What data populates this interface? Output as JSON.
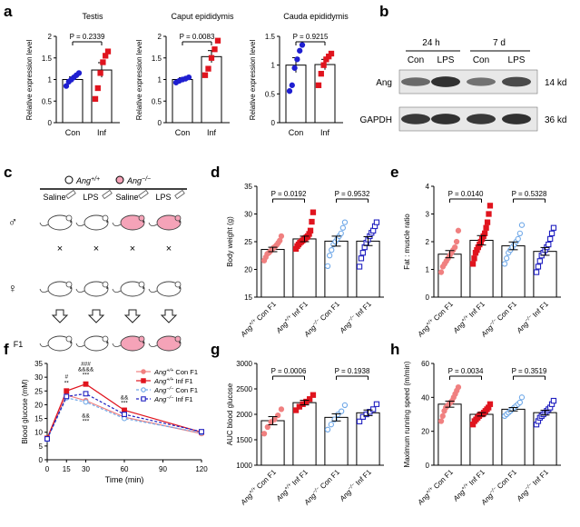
{
  "colors": {
    "con": "#1f1fd1",
    "inf": "#e0141e",
    "wt_con": "#f08080",
    "wt_inf": "#e0141e",
    "ko_con": "#6fa8e8",
    "ko_inf": "#2020c0",
    "mouse_pink": "#f5a3b8",
    "gray": "#555555"
  },
  "panels": {
    "a": "a",
    "b": "b",
    "c": "c",
    "d": "d",
    "e": "e",
    "f": "f",
    "g": "g",
    "h": "h"
  },
  "chart_data": [
    {
      "id": "a1",
      "type": "bar",
      "title": "Testis",
      "ylabel": "Relative expression level",
      "categories": [
        "Con",
        "Inf"
      ],
      "ylim": [
        0,
        2.0
      ],
      "yticks": [
        0,
        0.5,
        1.0,
        1.5,
        2.0
      ],
      "p": "P = 0.2339",
      "series": [
        {
          "name": "Con",
          "mean": 1.0,
          "sem": 0.06,
          "points": [
            0.85,
            0.95,
            1.0,
            1.05,
            1.1,
            1.15
          ]
        },
        {
          "name": "Inf",
          "mean": 1.22,
          "sem": 0.17,
          "points": [
            0.55,
            0.8,
            1.15,
            1.4,
            1.55,
            1.65
          ]
        }
      ]
    },
    {
      "id": "a2",
      "type": "bar",
      "title": "Caput epididymis",
      "ylabel": "Relative expression level",
      "categories": [
        "Con",
        "Inf"
      ],
      "ylim": [
        0,
        2.0
      ],
      "yticks": [
        0,
        0.5,
        1.0,
        1.5,
        2.0
      ],
      "p": "P = 0.0083",
      "series": [
        {
          "name": "Con",
          "mean": 1.0,
          "sem": 0.04,
          "points": [
            0.93,
            0.97,
            1.0,
            1.02,
            1.05
          ]
        },
        {
          "name": "Inf",
          "mean": 1.53,
          "sem": 0.14,
          "points": [
            1.1,
            1.25,
            1.5,
            1.7,
            1.9
          ]
        }
      ]
    },
    {
      "id": "a3",
      "type": "bar",
      "title": "Cauda epididymis",
      "ylabel": "Relative expression level",
      "categories": [
        "Con",
        "Inf"
      ],
      "ylim": [
        0,
        1.5
      ],
      "yticks": [
        0,
        0.5,
        1.0,
        1.5
      ],
      "p": "P = 0.9215",
      "series": [
        {
          "name": "Con",
          "mean": 1.0,
          "sem": 0.13,
          "points": [
            0.55,
            0.65,
            0.95,
            1.1,
            1.25,
            1.35
          ]
        },
        {
          "name": "Inf",
          "mean": 1.01,
          "sem": 0.09,
          "points": [
            0.65,
            0.85,
            1.0,
            1.1,
            1.15,
            1.2
          ]
        }
      ]
    },
    {
      "id": "d",
      "type": "bar",
      "ylabel": "Body weight (g)",
      "ylim": [
        15,
        35
      ],
      "yticks": [
        15,
        20,
        25,
        30,
        35
      ],
      "p1": "P = 0.0192",
      "p2": "P = 0.9532",
      "series": [
        {
          "name": "Ang+/+ Con F1",
          "mean": 23.6,
          "sem": 0.4,
          "shape": "circle",
          "fill": true,
          "points": [
            21.6,
            22.2,
            22.8,
            23.0,
            23.3,
            23.6,
            23.9,
            24.1,
            24.4,
            24.8,
            25.2,
            26.0
          ]
        },
        {
          "name": "Ang+/+ Inf F1",
          "mean": 25.5,
          "sem": 0.5,
          "shape": "square",
          "fill": true,
          "points": [
            23.7,
            24.2,
            24.5,
            24.8,
            25.0,
            25.2,
            25.4,
            25.6,
            25.8,
            26.0,
            26.4,
            27.0,
            28.6,
            30.3
          ]
        },
        {
          "name": "Ang-/- Con F1",
          "mean": 25.1,
          "sem": 0.9,
          "shape": "circle",
          "fill": false,
          "points": [
            20.6,
            22.5,
            23.5,
            24.5,
            25.0,
            25.5,
            26.0,
            26.5,
            27.5,
            28.5
          ]
        },
        {
          "name": "Ang-/- Inf F1",
          "mean": 25.1,
          "sem": 0.8,
          "shape": "square",
          "fill": false,
          "points": [
            20.5,
            22.0,
            23.0,
            24.0,
            24.8,
            25.4,
            26.0,
            26.6,
            27.0,
            27.8,
            28.5
          ]
        }
      ]
    },
    {
      "id": "e",
      "type": "bar",
      "ylabel": "Fat : muscle ratio",
      "ylim": [
        0,
        4
      ],
      "yticks": [
        0,
        1,
        2,
        3,
        4
      ],
      "p1": "P = 0.0140",
      "p2": "P = 0.5328",
      "series": [
        {
          "name": "Ang+/+ Con F1",
          "mean": 1.55,
          "sem": 0.13,
          "shape": "circle",
          "fill": true,
          "points": [
            0.9,
            1.1,
            1.2,
            1.3,
            1.4,
            1.5,
            1.6,
            1.7,
            1.8,
            2.0,
            2.4
          ]
        },
        {
          "name": "Ang+/+ Inf F1",
          "mean": 2.05,
          "sem": 0.17,
          "shape": "square",
          "fill": true,
          "points": [
            1.2,
            1.4,
            1.6,
            1.7,
            1.8,
            1.9,
            2.0,
            2.1,
            2.2,
            2.3,
            2.5,
            2.7,
            3.0,
            3.3
          ]
        },
        {
          "name": "Ang-/- Con F1",
          "mean": 1.85,
          "sem": 0.14,
          "shape": "circle",
          "fill": false,
          "points": [
            1.2,
            1.4,
            1.6,
            1.7,
            1.8,
            1.9,
            2.0,
            2.1,
            2.3,
            2.6
          ]
        },
        {
          "name": "Ang-/- Inf F1",
          "mean": 1.65,
          "sem": 0.14,
          "shape": "square",
          "fill": false,
          "points": [
            0.9,
            1.1,
            1.3,
            1.5,
            1.6,
            1.7,
            1.8,
            1.9,
            2.1,
            2.3,
            2.5
          ]
        }
      ]
    },
    {
      "id": "f",
      "type": "line",
      "xlabel": "Time (min)",
      "ylabel": "Blood glucose (mM)",
      "x": [
        0,
        15,
        30,
        60,
        120
      ],
      "xlim": [
        0,
        120
      ],
      "xticks": [
        0,
        15,
        30,
        60,
        90,
        120
      ],
      "ylim": [
        0,
        35
      ],
      "yticks": [
        0,
        5,
        10,
        15,
        20,
        25,
        30,
        35
      ],
      "series": [
        {
          "name": "Ang+/+ Con F1",
          "values": [
            7.5,
            23.5,
            21.5,
            15.5,
            9.5
          ]
        },
        {
          "name": "Ang+/+ Inf F1",
          "values": [
            7.8,
            25.0,
            27.5,
            18.0,
            10.0
          ]
        },
        {
          "name": "Ang-/- Con F1",
          "values": [
            7.4,
            22.5,
            21.0,
            15.0,
            9.8
          ]
        },
        {
          "name": "Ang-/- Inf F1",
          "values": [
            7.6,
            23.0,
            24.0,
            16.5,
            10.2
          ]
        }
      ],
      "annotations": [
        "#",
        "**",
        "###",
        "&&&&",
        "***",
        "&&",
        "***",
        "&&",
        "***"
      ]
    },
    {
      "id": "g",
      "type": "bar",
      "ylabel": "AUC blood glucose",
      "ylim": [
        1000,
        3000
      ],
      "yticks": [
        1000,
        1500,
        2000,
        2500,
        3000
      ],
      "p1": "P = 0.0006",
      "p2": "P = 0.1938",
      "series": [
        {
          "name": "Ang+/+ Con F1",
          "mean": 1875,
          "sem": 80,
          "shape": "circle",
          "fill": true,
          "points": [
            1620,
            1750,
            1850,
            1900,
            1980,
            2100
          ]
        },
        {
          "name": "Ang+/+ Inf F1",
          "mean": 2230,
          "sem": 45,
          "shape": "square",
          "fill": true,
          "points": [
            2080,
            2150,
            2200,
            2250,
            2300,
            2380
          ]
        },
        {
          "name": "Ang-/- Con F1",
          "mean": 1940,
          "sem": 70,
          "shape": "circle",
          "fill": false,
          "points": [
            1700,
            1800,
            1900,
            2000,
            2060,
            2180
          ]
        },
        {
          "name": "Ang-/- Inf F1",
          "mean": 2030,
          "sem": 55,
          "shape": "square",
          "fill": false,
          "points": [
            1860,
            1950,
            2000,
            2050,
            2100,
            2200
          ]
        }
      ]
    },
    {
      "id": "h",
      "type": "bar",
      "ylabel": "Maximum running speed (m/min)",
      "ylim": [
        0,
        60
      ],
      "yticks": [
        0,
        20,
        40,
        60
      ],
      "p1": "P = 0.0034",
      "p2": "P = 0.3519",
      "series": [
        {
          "name": "Ang+/+ Con F1",
          "mean": 36,
          "sem": 1.8,
          "shape": "circle",
          "fill": true,
          "points": [
            26,
            29,
            32,
            34,
            35,
            36,
            37,
            38,
            40,
            42,
            44,
            46
          ]
        },
        {
          "name": "Ang+/+ Inf F1",
          "mean": 30,
          "sem": 1.0,
          "shape": "square",
          "fill": true,
          "points": [
            24,
            26,
            27,
            28,
            29,
            30,
            30,
            31,
            32,
            33,
            34,
            36
          ]
        },
        {
          "name": "Ang-/- Con F1",
          "mean": 33,
          "sem": 1.0,
          "shape": "circle",
          "fill": false,
          "points": [
            29,
            30,
            31,
            32,
            33,
            34,
            35,
            36,
            37,
            40
          ]
        },
        {
          "name": "Ang-/- Inf F1",
          "mean": 31,
          "sem": 1.4,
          "shape": "square",
          "fill": false,
          "points": [
            24,
            26,
            28,
            29,
            30,
            31,
            32,
            33,
            34,
            36,
            38
          ]
        }
      ]
    }
  ],
  "blot": {
    "headers": [
      "24 h",
      "7 d"
    ],
    "lanes": [
      "Con",
      "LPS",
      "Con",
      "LPS"
    ],
    "rows": [
      {
        "label": "Ang",
        "size": "14 kd",
        "intensity": [
          0.6,
          0.95,
          0.55,
          0.8
        ]
      },
      {
        "label": "GAPDH",
        "size": "36 kd",
        "intensity": [
          0.9,
          0.95,
          0.9,
          0.95
        ]
      }
    ]
  },
  "scheme": {
    "legend_wt": "Ang+/+",
    "legend_ko": "Ang−/−",
    "legend_wt_base": "Ang",
    "legend_wt_sup": "+/+",
    "legend_ko_base": "Ang",
    "legend_ko_sup": "−/−",
    "treatments": [
      "Saline",
      "LPS",
      "Saline",
      "LPS"
    ],
    "male": "♂",
    "female": "♀",
    "cross": "×",
    "f1": "F1"
  },
  "group_labels": [
    {
      "base": "Ang",
      "sup": "+/+",
      "rest": " Con F1"
    },
    {
      "base": "Ang",
      "sup": "+/+",
      "rest": " Inf F1"
    },
    {
      "base": "Ang",
      "sup": "−/−",
      "rest": " Con F1"
    },
    {
      "base": "Ang",
      "sup": "−/−",
      "rest": " Inf F1"
    }
  ]
}
